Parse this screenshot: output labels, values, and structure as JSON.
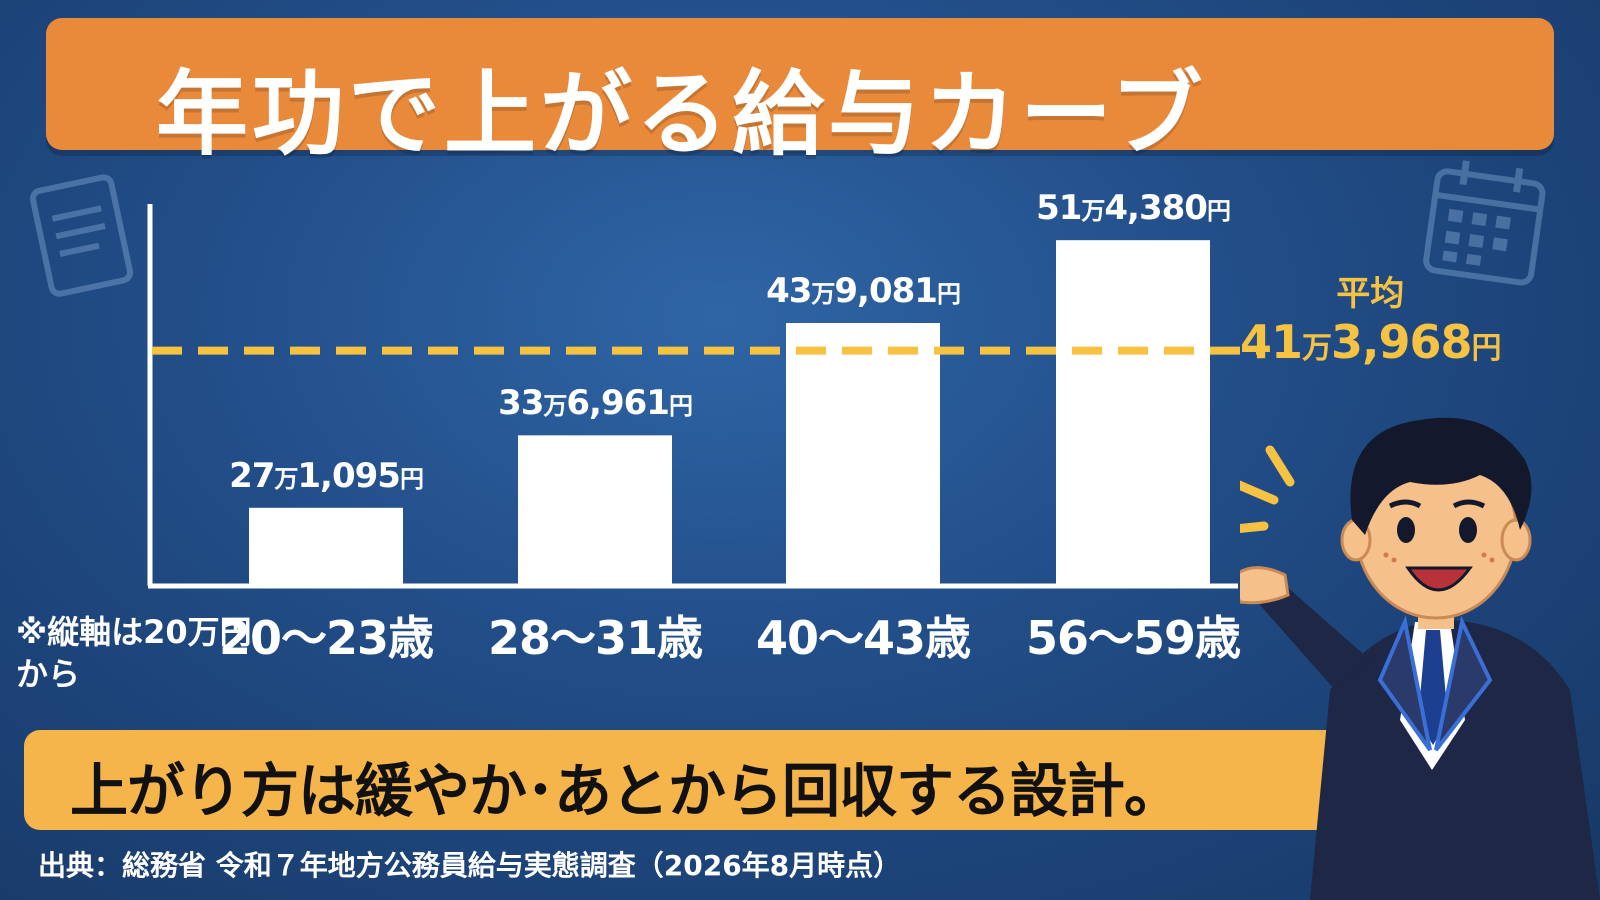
{
  "title": "年功で上がる給与カーブ",
  "chart_data": {
    "type": "bar",
    "categories": [
      "20～23歳",
      "28～31歳",
      "40～43歳",
      "56～59歳"
    ],
    "values": [
      271095,
      336961,
      439081,
      514380
    ],
    "value_labels": [
      {
        "man": "27",
        "rest": "1,095",
        "yen": "円"
      },
      {
        "man": "33",
        "rest": "6,961",
        "yen": "円"
      },
      {
        "man": "43",
        "rest": "9,081",
        "yen": "円"
      },
      {
        "man": "51",
        "rest": "4,380",
        "yen": "円"
      }
    ],
    "man_unit": "万",
    "ylim": [
      200000,
      560000
    ],
    "average": {
      "value": 413968,
      "label": "平均",
      "man": "41",
      "rest": "3,968",
      "yen": "円"
    },
    "bar_color": "#ffffff",
    "average_line_color": "#f5c242"
  },
  "note": "※縦軸は20万円から",
  "summary": "上がり方は緩やか･あとから回収する設計。",
  "source": "出典：総務省 令和７年地方公務員給与実態調査（2026年8月時点）",
  "icons": [
    "document-icon",
    "calendar-icon"
  ],
  "colors": {
    "title_banner": "#e9893a",
    "bottom_banner": "#f6b54a",
    "background": "#214c86",
    "accent": "#f5c242"
  }
}
